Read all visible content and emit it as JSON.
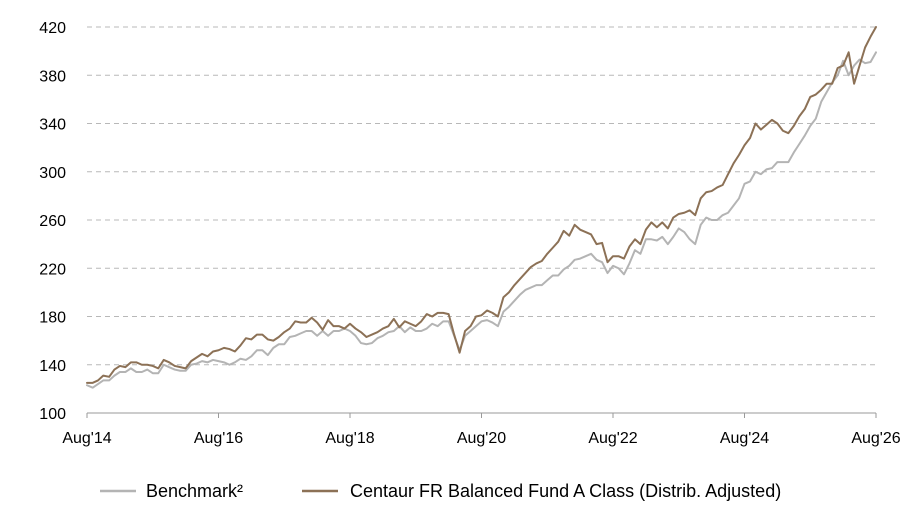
{
  "chart_data": {
    "type": "line",
    "title": "",
    "xlabel": "",
    "ylabel": "",
    "xlim": [
      2014.583,
      2026.583
    ],
    "ylim": [
      100,
      420
    ],
    "x_ticks": [
      {
        "value": 2014.583,
        "label": "Aug'14"
      },
      {
        "value": 2016.583,
        "label": "Aug'16"
      },
      {
        "value": 2018.583,
        "label": "Aug'18"
      },
      {
        "value": 2020.583,
        "label": "Aug'20"
      },
      {
        "value": 2022.583,
        "label": "Aug'22"
      },
      {
        "value": 2024.583,
        "label": "Aug'24"
      },
      {
        "value": 2026.583,
        "label": "Aug'26"
      }
    ],
    "y_ticks": [
      100,
      140,
      180,
      220,
      260,
      300,
      340,
      380,
      420
    ],
    "grid": true,
    "legend_position": "bottom",
    "series": [
      {
        "name": "Benchmark²",
        "color": "#b4b4b4",
        "points": [
          [
            2014.583,
            123
          ],
          [
            2014.67,
            121
          ],
          [
            2014.75,
            124
          ],
          [
            2014.83,
            127
          ],
          [
            2014.92,
            127
          ],
          [
            2015.0,
            131
          ],
          [
            2015.083,
            134
          ],
          [
            2015.167,
            134
          ],
          [
            2015.25,
            137
          ],
          [
            2015.333,
            134
          ],
          [
            2015.417,
            134
          ],
          [
            2015.5,
            136
          ],
          [
            2015.583,
            133
          ],
          [
            2015.667,
            133
          ],
          [
            2015.75,
            140
          ],
          [
            2015.833,
            138
          ],
          [
            2015.917,
            136
          ],
          [
            2016.0,
            135
          ],
          [
            2016.083,
            135
          ],
          [
            2016.167,
            140
          ],
          [
            2016.25,
            141
          ],
          [
            2016.333,
            143
          ],
          [
            2016.417,
            142
          ],
          [
            2016.5,
            144
          ],
          [
            2016.583,
            143
          ],
          [
            2016.667,
            142
          ],
          [
            2016.75,
            140
          ],
          [
            2016.833,
            142
          ],
          [
            2016.917,
            145
          ],
          [
            2017.0,
            144
          ],
          [
            2017.083,
            147
          ],
          [
            2017.167,
            152
          ],
          [
            2017.25,
            152
          ],
          [
            2017.333,
            148
          ],
          [
            2017.417,
            154
          ],
          [
            2017.5,
            157
          ],
          [
            2017.583,
            157
          ],
          [
            2017.667,
            163
          ],
          [
            2017.75,
            164
          ],
          [
            2017.833,
            166
          ],
          [
            2017.917,
            168
          ],
          [
            2018.0,
            168
          ],
          [
            2018.083,
            164
          ],
          [
            2018.167,
            168
          ],
          [
            2018.25,
            164
          ],
          [
            2018.333,
            168
          ],
          [
            2018.417,
            168
          ],
          [
            2018.5,
            170
          ],
          [
            2018.583,
            168
          ],
          [
            2018.667,
            164
          ],
          [
            2018.75,
            158
          ],
          [
            2018.833,
            157
          ],
          [
            2018.917,
            158
          ],
          [
            2019.0,
            162
          ],
          [
            2019.083,
            164
          ],
          [
            2019.167,
            167
          ],
          [
            2019.25,
            168
          ],
          [
            2019.333,
            172
          ],
          [
            2019.417,
            167
          ],
          [
            2019.5,
            171
          ],
          [
            2019.583,
            168
          ],
          [
            2019.667,
            168
          ],
          [
            2019.75,
            170
          ],
          [
            2019.833,
            174
          ],
          [
            2019.917,
            172
          ],
          [
            2020.0,
            176
          ],
          [
            2020.083,
            176
          ],
          [
            2020.167,
            164
          ],
          [
            2020.25,
            152
          ],
          [
            2020.333,
            164
          ],
          [
            2020.417,
            168
          ],
          [
            2020.5,
            172
          ],
          [
            2020.583,
            176
          ],
          [
            2020.667,
            177
          ],
          [
            2020.75,
            175
          ],
          [
            2020.833,
            172
          ],
          [
            2020.917,
            184
          ],
          [
            2021.0,
            188
          ],
          [
            2021.083,
            193
          ],
          [
            2021.167,
            198
          ],
          [
            2021.25,
            202
          ],
          [
            2021.333,
            204
          ],
          [
            2021.417,
            206
          ],
          [
            2021.5,
            206
          ],
          [
            2021.583,
            210
          ],
          [
            2021.667,
            214
          ],
          [
            2021.75,
            214
          ],
          [
            2021.833,
            219
          ],
          [
            2021.917,
            222
          ],
          [
            2022.0,
            227
          ],
          [
            2022.083,
            228
          ],
          [
            2022.167,
            230
          ],
          [
            2022.25,
            232
          ],
          [
            2022.333,
            227
          ],
          [
            2022.417,
            225
          ],
          [
            2022.5,
            216
          ],
          [
            2022.583,
            222
          ],
          [
            2022.667,
            220
          ],
          [
            2022.75,
            215
          ],
          [
            2022.833,
            224
          ],
          [
            2022.917,
            235
          ],
          [
            2023.0,
            232
          ],
          [
            2023.083,
            244
          ],
          [
            2023.167,
            244
          ],
          [
            2023.25,
            243
          ],
          [
            2023.333,
            246
          ],
          [
            2023.417,
            240
          ],
          [
            2023.5,
            246
          ],
          [
            2023.583,
            253
          ],
          [
            2023.667,
            250
          ],
          [
            2023.75,
            244
          ],
          [
            2023.833,
            240
          ],
          [
            2023.917,
            256
          ],
          [
            2024.0,
            262
          ],
          [
            2024.083,
            260
          ],
          [
            2024.167,
            260
          ],
          [
            2024.25,
            264
          ],
          [
            2024.333,
            266
          ],
          [
            2024.417,
            272
          ],
          [
            2024.5,
            278
          ],
          [
            2024.583,
            290
          ],
          [
            2024.667,
            292
          ],
          [
            2024.75,
            300
          ],
          [
            2024.833,
            298
          ],
          [
            2024.917,
            302
          ],
          [
            2025.0,
            303
          ],
          [
            2025.083,
            308
          ],
          [
            2025.167,
            308
          ],
          [
            2025.25,
            308
          ],
          [
            2025.333,
            316
          ],
          [
            2025.417,
            323
          ],
          [
            2025.5,
            330
          ],
          [
            2025.583,
            338
          ],
          [
            2025.667,
            344
          ],
          [
            2025.75,
            358
          ],
          [
            2025.833,
            366
          ],
          [
            2025.917,
            374
          ],
          [
            2026.0,
            380
          ],
          [
            2026.083,
            392
          ],
          [
            2026.167,
            380
          ],
          [
            2026.25,
            388
          ],
          [
            2026.333,
            393
          ],
          [
            2026.417,
            390
          ],
          [
            2026.5,
            391
          ],
          [
            2026.583,
            399
          ]
        ]
      },
      {
        "name": "Centaur FR Balanced Fund A Class (Distrib. Adjusted)",
        "color": "#8c7156",
        "points": [
          [
            2014.583,
            125
          ],
          [
            2014.67,
            125
          ],
          [
            2014.75,
            127
          ],
          [
            2014.83,
            131
          ],
          [
            2014.92,
            130
          ],
          [
            2015.0,
            136
          ],
          [
            2015.083,
            139
          ],
          [
            2015.167,
            138
          ],
          [
            2015.25,
            142
          ],
          [
            2015.333,
            142
          ],
          [
            2015.417,
            140
          ],
          [
            2015.5,
            140
          ],
          [
            2015.583,
            139
          ],
          [
            2015.667,
            137
          ],
          [
            2015.75,
            144
          ],
          [
            2015.833,
            142
          ],
          [
            2015.917,
            139
          ],
          [
            2016.0,
            138
          ],
          [
            2016.083,
            137
          ],
          [
            2016.167,
            143
          ],
          [
            2016.25,
            146
          ],
          [
            2016.333,
            149
          ],
          [
            2016.417,
            147
          ],
          [
            2016.5,
            151
          ],
          [
            2016.583,
            152
          ],
          [
            2016.667,
            154
          ],
          [
            2016.75,
            153
          ],
          [
            2016.833,
            151
          ],
          [
            2016.917,
            156
          ],
          [
            2017.0,
            162
          ],
          [
            2017.083,
            161
          ],
          [
            2017.167,
            165
          ],
          [
            2017.25,
            165
          ],
          [
            2017.333,
            161
          ],
          [
            2017.417,
            160
          ],
          [
            2017.5,
            163
          ],
          [
            2017.583,
            167
          ],
          [
            2017.667,
            170
          ],
          [
            2017.75,
            176
          ],
          [
            2017.833,
            175
          ],
          [
            2017.917,
            175
          ],
          [
            2018.0,
            179
          ],
          [
            2018.083,
            175
          ],
          [
            2018.167,
            169
          ],
          [
            2018.25,
            177
          ],
          [
            2018.333,
            172
          ],
          [
            2018.417,
            172
          ],
          [
            2018.5,
            170
          ],
          [
            2018.583,
            174
          ],
          [
            2018.667,
            170
          ],
          [
            2018.75,
            167
          ],
          [
            2018.833,
            163
          ],
          [
            2018.917,
            165
          ],
          [
            2019.0,
            167
          ],
          [
            2019.083,
            170
          ],
          [
            2019.167,
            172
          ],
          [
            2019.25,
            178
          ],
          [
            2019.333,
            171
          ],
          [
            2019.417,
            176
          ],
          [
            2019.5,
            174
          ],
          [
            2019.583,
            172
          ],
          [
            2019.667,
            176
          ],
          [
            2019.75,
            182
          ],
          [
            2019.833,
            180
          ],
          [
            2019.917,
            183
          ],
          [
            2020.0,
            183
          ],
          [
            2020.083,
            182
          ],
          [
            2020.167,
            165
          ],
          [
            2020.25,
            150
          ],
          [
            2020.333,
            168
          ],
          [
            2020.417,
            172
          ],
          [
            2020.5,
            180
          ],
          [
            2020.583,
            181
          ],
          [
            2020.667,
            185
          ],
          [
            2020.75,
            183
          ],
          [
            2020.833,
            180
          ],
          [
            2020.917,
            196
          ],
          [
            2021.0,
            200
          ],
          [
            2021.083,
            206
          ],
          [
            2021.167,
            211
          ],
          [
            2021.25,
            216
          ],
          [
            2021.333,
            221
          ],
          [
            2021.417,
            224
          ],
          [
            2021.5,
            226
          ],
          [
            2021.583,
            232
          ],
          [
            2021.667,
            237
          ],
          [
            2021.75,
            242
          ],
          [
            2021.833,
            251
          ],
          [
            2021.917,
            247
          ],
          [
            2022.0,
            256
          ],
          [
            2022.083,
            252
          ],
          [
            2022.167,
            250
          ],
          [
            2022.25,
            248
          ],
          [
            2022.333,
            240
          ],
          [
            2022.417,
            241
          ],
          [
            2022.5,
            225
          ],
          [
            2022.583,
            230
          ],
          [
            2022.667,
            230
          ],
          [
            2022.75,
            228
          ],
          [
            2022.833,
            238
          ],
          [
            2022.917,
            244
          ],
          [
            2023.0,
            240
          ],
          [
            2023.083,
            252
          ],
          [
            2023.167,
            258
          ],
          [
            2023.25,
            254
          ],
          [
            2023.333,
            258
          ],
          [
            2023.417,
            253
          ],
          [
            2023.5,
            262
          ],
          [
            2023.583,
            265
          ],
          [
            2023.667,
            266
          ],
          [
            2023.75,
            268
          ],
          [
            2023.833,
            264
          ],
          [
            2023.917,
            278
          ],
          [
            2024.0,
            283
          ],
          [
            2024.083,
            284
          ],
          [
            2024.167,
            287
          ],
          [
            2024.25,
            289
          ],
          [
            2024.333,
            298
          ],
          [
            2024.417,
            307
          ],
          [
            2024.5,
            314
          ],
          [
            2024.583,
            322
          ],
          [
            2024.667,
            328
          ],
          [
            2024.75,
            340
          ],
          [
            2024.833,
            335
          ],
          [
            2024.917,
            339
          ],
          [
            2025.0,
            343
          ],
          [
            2025.083,
            340
          ],
          [
            2025.167,
            334
          ],
          [
            2025.25,
            332
          ],
          [
            2025.333,
            338
          ],
          [
            2025.417,
            346
          ],
          [
            2025.5,
            352
          ],
          [
            2025.583,
            362
          ],
          [
            2025.667,
            364
          ],
          [
            2025.75,
            368
          ],
          [
            2025.833,
            373
          ],
          [
            2025.917,
            373
          ],
          [
            2026.0,
            386
          ],
          [
            2026.083,
            388
          ],
          [
            2026.167,
            399
          ],
          [
            2026.25,
            373
          ],
          [
            2026.333,
            388
          ],
          [
            2026.417,
            403
          ],
          [
            2026.5,
            412
          ],
          [
            2026.583,
            420
          ]
        ]
      }
    ]
  }
}
